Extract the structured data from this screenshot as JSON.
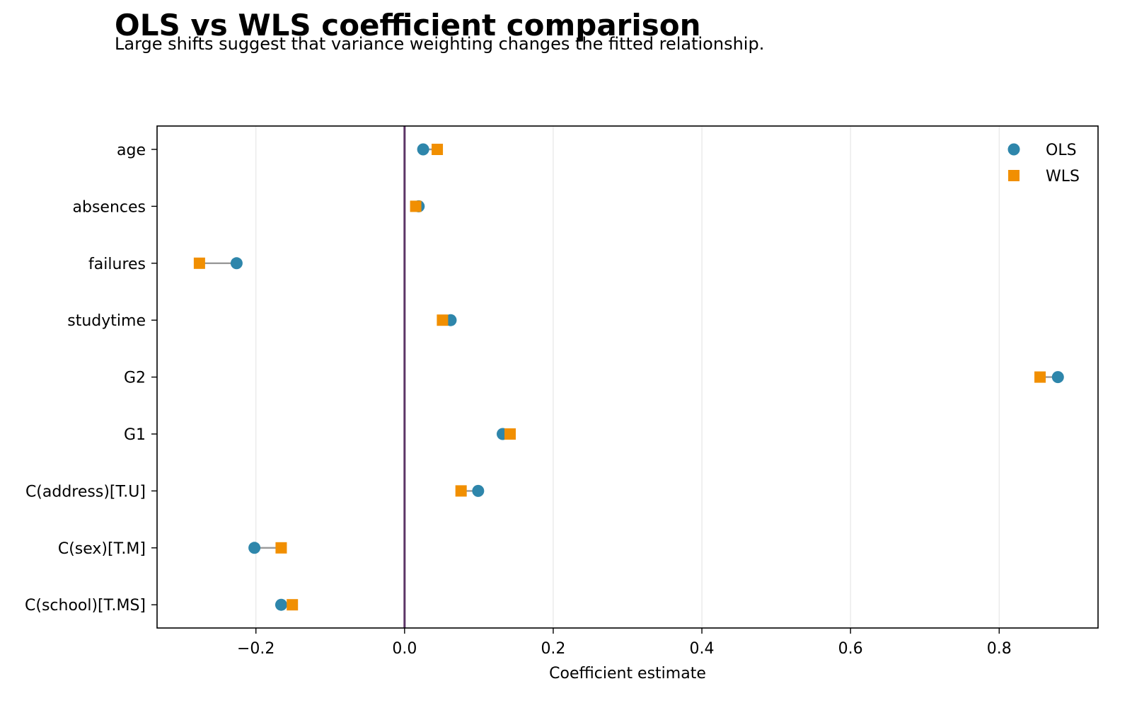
{
  "chart_data": {
    "type": "scatter",
    "title": "OLS vs WLS coefficient comparison",
    "subtitle": "Large shifts suggest that variance weighting changes the fitted relationship.",
    "xlabel": "Coefficient estimate",
    "ylabel": "",
    "xlim": [
      -0.333,
      0.933
    ],
    "x_ticks": [
      -0.2,
      0.0,
      0.2,
      0.4,
      0.6,
      0.8
    ],
    "x_tick_labels": [
      "−0.2",
      "0.0",
      "0.2",
      "0.4",
      "0.6",
      "0.8"
    ],
    "grid": "vertical",
    "reference_line": {
      "x": 0.0,
      "color": "#5c3566"
    },
    "legend": {
      "position": "top-right"
    },
    "categories": [
      "age",
      "absences",
      "failures",
      "studytime",
      "G2",
      "G1",
      "C(address)[T.U]",
      "C(sex)[T.M]",
      "C(school)[T.MS]"
    ],
    "series": [
      {
        "name": "OLS",
        "marker": "circle",
        "color": "#2e86ab",
        "values": [
          0.025,
          0.019,
          -0.226,
          0.062,
          0.879,
          0.132,
          0.099,
          -0.202,
          -0.166
        ]
      },
      {
        "name": "WLS",
        "marker": "square",
        "color": "#f18f01",
        "values": [
          0.044,
          0.015,
          -0.276,
          0.051,
          0.855,
          0.142,
          0.076,
          -0.166,
          -0.151
        ]
      }
    ],
    "connector_color": "#999999"
  }
}
